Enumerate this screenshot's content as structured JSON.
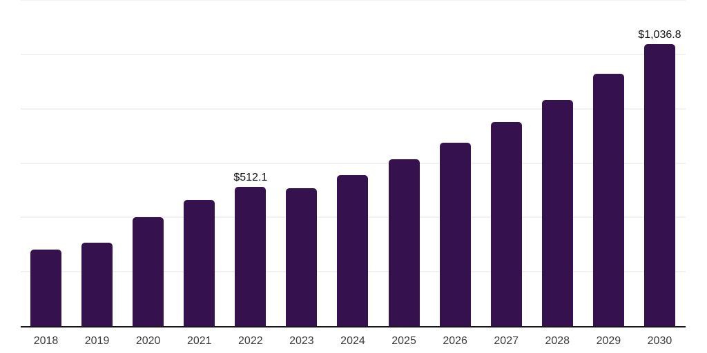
{
  "chart_data": {
    "type": "bar",
    "title": "",
    "xlabel": "",
    "ylabel": "",
    "categories": [
      "2018",
      "2019",
      "2020",
      "2021",
      "2022",
      "2023",
      "2024",
      "2025",
      "2026",
      "2027",
      "2028",
      "2029",
      "2030"
    ],
    "values": [
      282,
      307,
      401,
      464,
      512.1,
      507,
      556,
      614,
      675,
      751,
      832,
      929,
      1036.8
    ],
    "data_labels": [
      "",
      "",
      "",
      "",
      "$512.1",
      "",
      "",
      "",
      "",
      "",
      "",
      "",
      "$1,036.8"
    ],
    "ylim": [
      0,
      1200
    ],
    "gridline_step": 200,
    "grid": "horizontal",
    "legend_position": "none",
    "colors": {
      "bar": "#35114E",
      "axis": "#18141f",
      "gridline": "#f1f1f3",
      "tick_label": "#3c3c3c",
      "value_label": "#101010",
      "background": "#ffffff"
    }
  }
}
